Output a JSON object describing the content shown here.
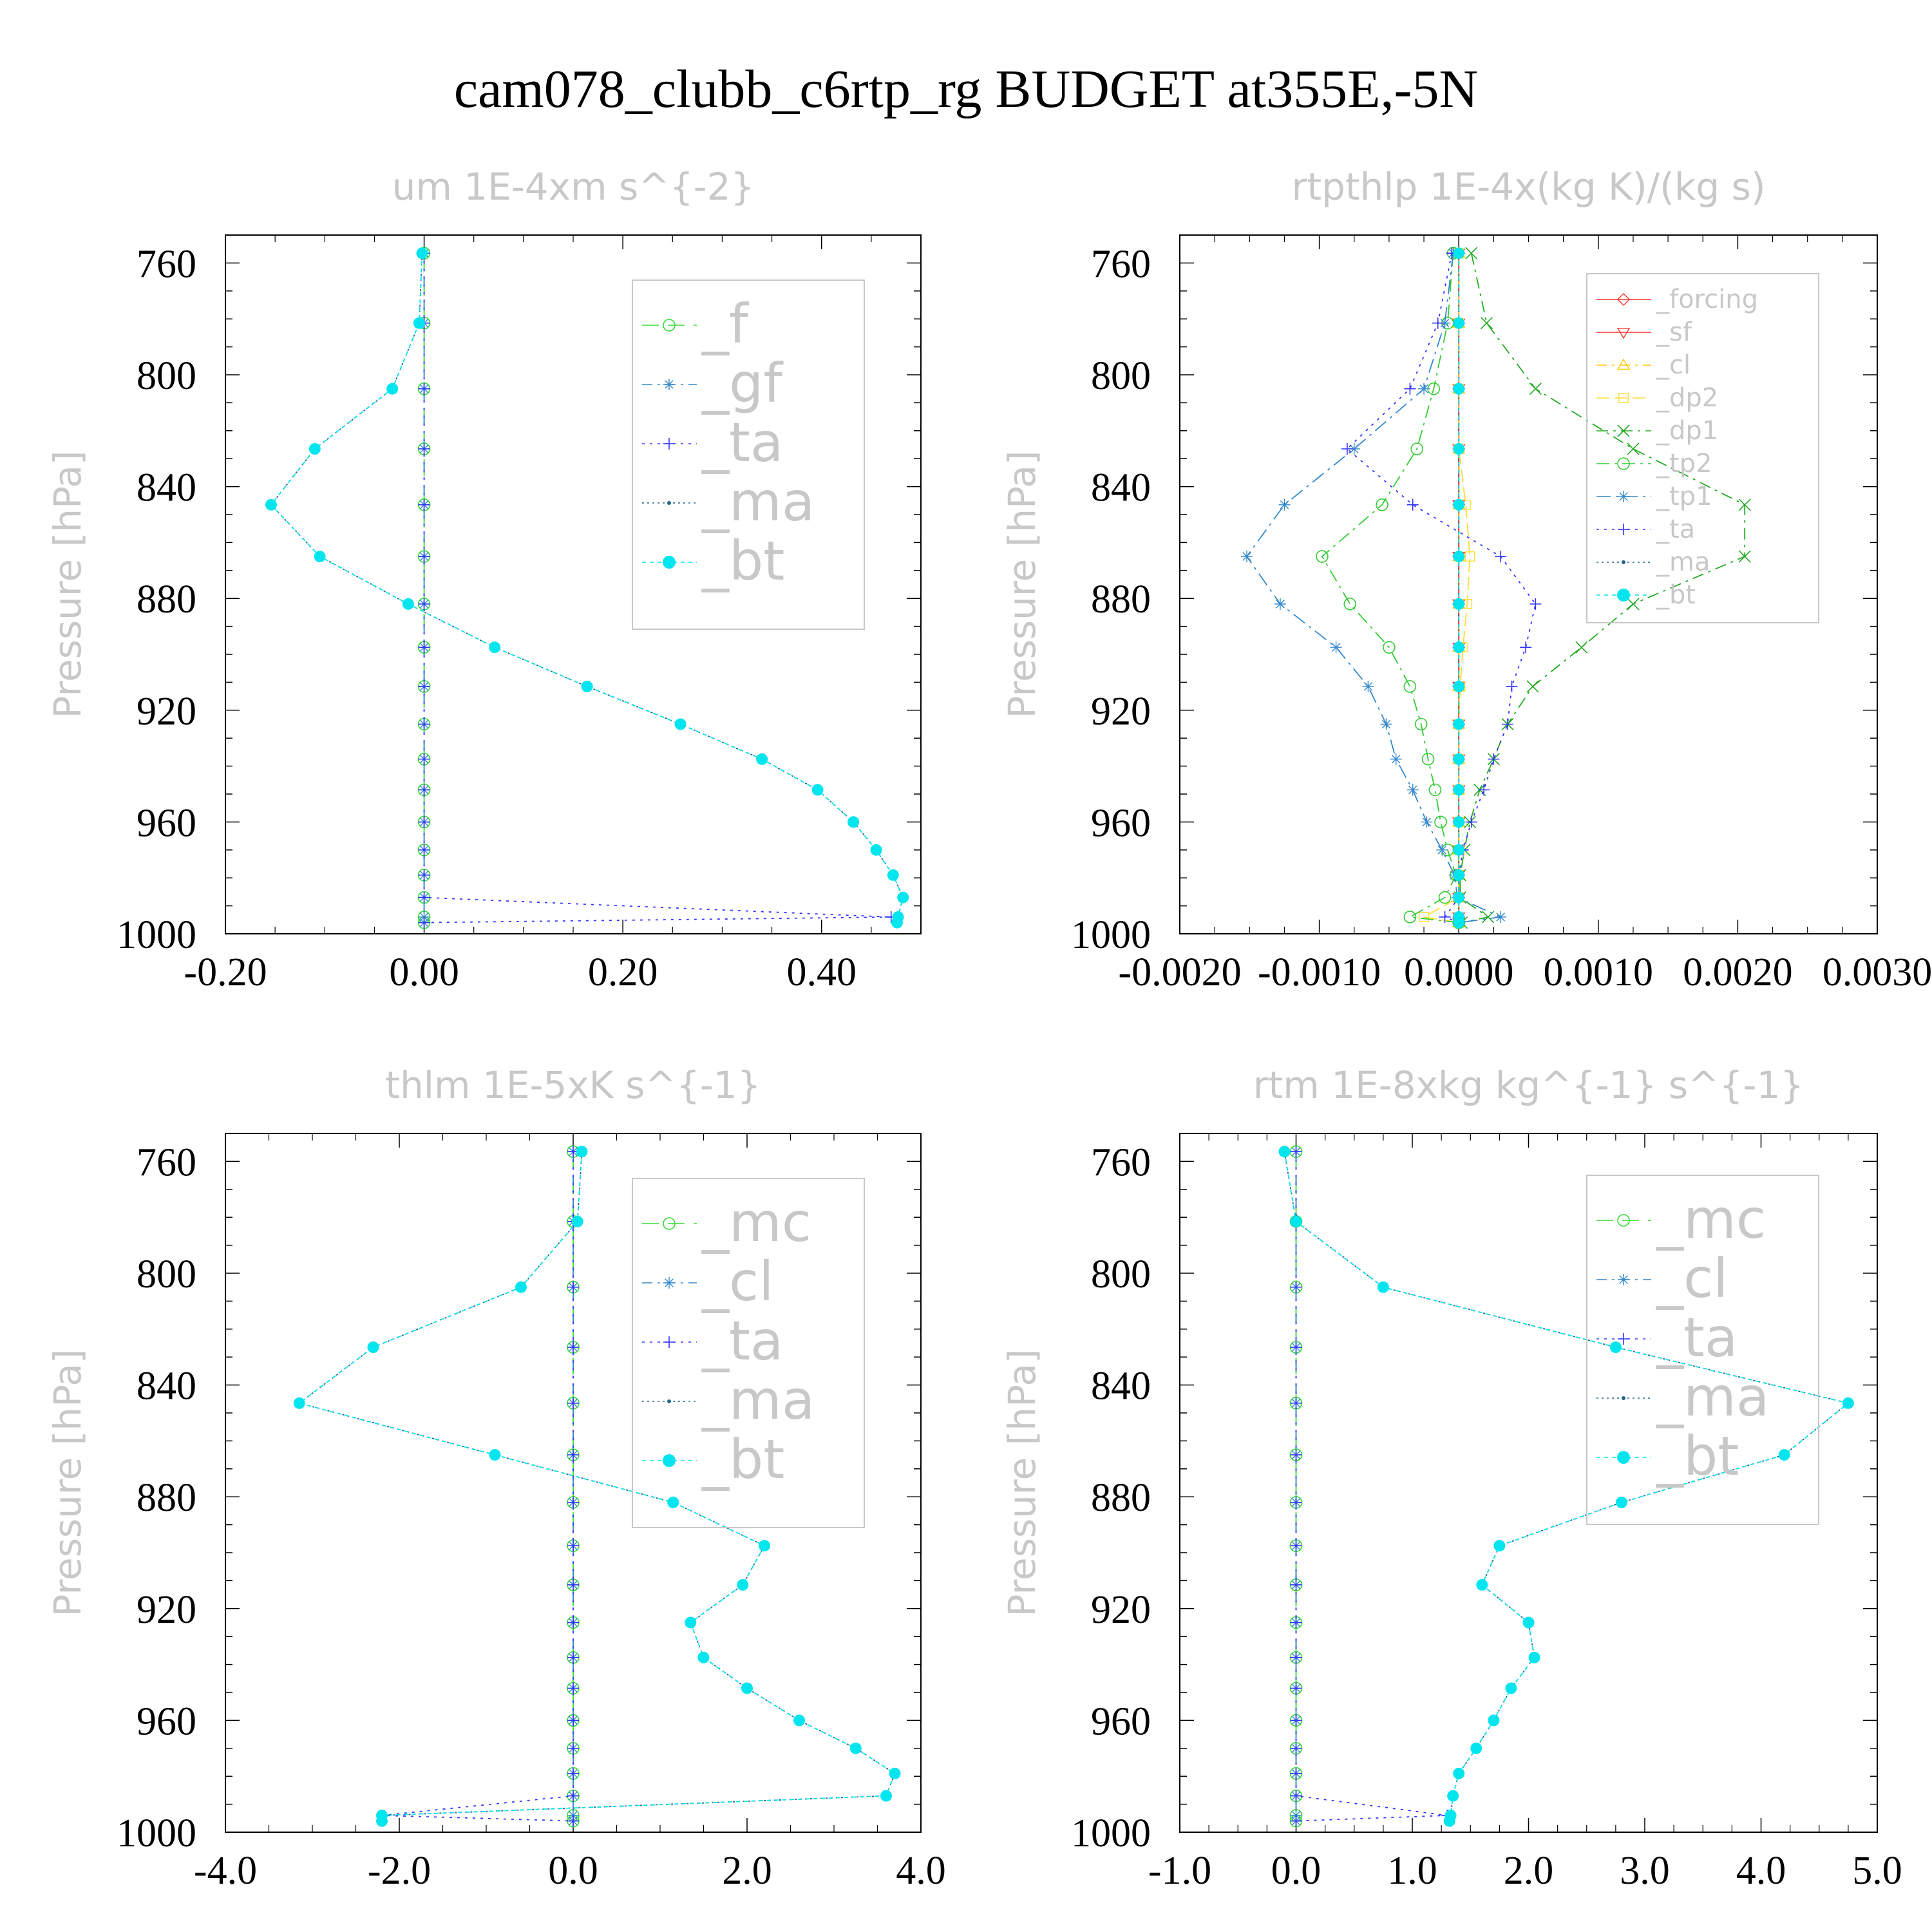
{
  "figure_title": "cam078_clubb_c6rtp_rg  BUDGET at355E,-5N",
  "ylabel": "Pressure [hPa]",
  "y_ticks": [
    "760",
    "800",
    "840",
    "880",
    "920",
    "960",
    "1000"
  ],
  "pressure_levels": [
    756.5,
    781.5,
    805,
    826.5,
    846.5,
    865,
    882,
    897.5,
    911.5,
    925,
    937.5,
    948.5,
    960,
    970,
    979,
    987,
    994,
    996
  ],
  "chart_data": [
    {
      "type": "line",
      "title": "um   1E-4xm s^{-2}",
      "xlim": [
        -0.2,
        0.5
      ],
      "ylim": [
        750,
        1000
      ],
      "x_ticks": [
        "-0.20",
        "0.00",
        "0.20",
        "0.40"
      ],
      "legend_entries": [
        "_f",
        "_gf",
        "_ta",
        "_ma",
        "_bt"
      ],
      "series": [
        {
          "name": "_f",
          "color": "#33dd33",
          "marker": "circle-open",
          "values": [
            0,
            0,
            0,
            0,
            0,
            0,
            0,
            0,
            0,
            0,
            0,
            0,
            0,
            0,
            0,
            0,
            0,
            0
          ]
        },
        {
          "name": "_gf",
          "color": "#3388cc",
          "marker": "asterisk",
          "values": [
            0,
            0,
            0,
            0,
            0,
            0,
            0,
            0,
            0,
            0,
            0,
            0,
            0,
            0,
            0,
            0,
            0,
            0
          ]
        },
        {
          "name": "_ta",
          "color": "#3333ff",
          "marker": "plus",
          "values": [
            0,
            0,
            0,
            0,
            0,
            0,
            0,
            0,
            0,
            0,
            0,
            0,
            0,
            0,
            0,
            0,
            0.47,
            0.0
          ]
        },
        {
          "name": "_ma",
          "color": "#226688",
          "marker": "dot",
          "values": [
            -0.002,
            -0.005,
            -0.032,
            -0.11,
            -0.154,
            -0.105,
            -0.016,
            0.071,
            0.164,
            0.258,
            0.34,
            0.396,
            0.432,
            0.455,
            0.472,
            0.482,
            0.477,
            0.476
          ]
        },
        {
          "name": "_bt",
          "color": "#00e5ee",
          "marker": "dot-filled",
          "values": [
            -0.002,
            -0.005,
            -0.032,
            -0.11,
            -0.154,
            -0.105,
            -0.016,
            0.071,
            0.164,
            0.258,
            0.34,
            0.396,
            0.432,
            0.455,
            0.472,
            0.482,
            0.477,
            0.476
          ]
        }
      ]
    },
    {
      "type": "line",
      "title": "rtpthlp   1E-4x(kg K)/(kg s)",
      "xlim": [
        -0.002,
        0.003
      ],
      "ylim": [
        750,
        1000
      ],
      "x_ticks": [
        "-0.0020",
        "-0.0010",
        "0.0000",
        "0.0010",
        "0.0020",
        "0.0030"
      ],
      "legend_entries": [
        "_forcing",
        "_sf",
        "_cl",
        "_dp2",
        "_dp1",
        "_tp2",
        "_tp1",
        "_ta",
        "_ma",
        "_bt"
      ],
      "series": [
        {
          "name": "_forcing",
          "color": "#ff3333",
          "marker": "diamond",
          "values": [
            0,
            0,
            0,
            0,
            0,
            0,
            0,
            0,
            0,
            0,
            0,
            0,
            0,
            0,
            0,
            0,
            0,
            0
          ]
        },
        {
          "name": "_sf",
          "color": "#ff3333",
          "marker": "triangle-down",
          "values": [
            0,
            0,
            0,
            0,
            0,
            0,
            0,
            0,
            0,
            0,
            0,
            0,
            0,
            0,
            0,
            0,
            0,
            0
          ]
        },
        {
          "name": "_cl",
          "color": "#ffcc00",
          "marker": "triangle-up",
          "values": [
            0,
            0,
            0,
            0,
            0,
            0,
            0,
            0,
            0,
            0,
            0,
            0,
            0,
            0,
            0,
            0,
            0,
            0
          ]
        },
        {
          "name": "_dp2",
          "color": "#ffdd33",
          "marker": "square",
          "values": [
            0,
            0,
            0,
            0,
            5e-05,
            8e-05,
            6e-05,
            3e-05,
            1e-05,
            0,
            0,
            0,
            0,
            0,
            0,
            0,
            -0.00025,
            0
          ]
        },
        {
          "name": "_dp1",
          "color": "#22aa22",
          "marker": "x",
          "values": [
            9e-05,
            0.0002,
            0.00055,
            0.00125,
            0.00205,
            0.00205,
            0.00125,
            0.00088,
            0.00053,
            0.00035,
            0.00025,
            0.00015,
            8e-05,
            4e-05,
            1e-05,
            1e-05,
            0.00021,
            2e-05
          ]
        },
        {
          "name": "_tp2",
          "color": "#33cc33",
          "marker": "circle-open",
          "values": [
            -4e-05,
            -8e-05,
            -0.00018,
            -0.0003,
            -0.00055,
            -0.00098,
            -0.00078,
            -0.0005,
            -0.00035,
            -0.00027,
            -0.00022,
            -0.00017,
            -0.00013,
            -8e-05,
            -2e-05,
            -0.0001,
            -0.00035,
            0.0
          ]
        },
        {
          "name": "_tp1",
          "color": "#3388cc",
          "marker": "asterisk",
          "values": [
            -4e-05,
            -0.0001,
            -0.00025,
            -0.00075,
            -0.00125,
            -0.00152,
            -0.00128,
            -0.00088,
            -0.00065,
            -0.00052,
            -0.00045,
            -0.00033,
            -0.00023,
            -0.00012,
            -3e-05,
            -1e-05,
            0.0003,
            0.0
          ]
        },
        {
          "name": "_ta",
          "color": "#3333ff",
          "marker": "plus",
          "values": [
            -5e-05,
            -0.00015,
            -0.00035,
            -0.0008,
            -0.00033,
            0.0003,
            0.00055,
            0.00048,
            0.00038,
            0.00035,
            0.00025,
            0.00018,
            9e-05,
            3e-05,
            0.0,
            0.0,
            -0.0001,
            0.0
          ]
        },
        {
          "name": "_ma",
          "color": "#226688",
          "marker": "dot",
          "values": [
            0,
            0,
            0,
            0,
            0,
            0,
            0,
            0,
            0,
            0,
            0,
            0,
            0,
            0,
            0,
            0,
            0,
            0
          ]
        },
        {
          "name": "_bt",
          "color": "#00e5ee",
          "marker": "dot-filled",
          "values": [
            0,
            0,
            0,
            0,
            0,
            0,
            0,
            0,
            0,
            0,
            0,
            0,
            0,
            0,
            0,
            0,
            0,
            0
          ]
        }
      ]
    },
    {
      "type": "line",
      "title": "thlm   1E-5xK s^{-1}",
      "xlim": [
        -4.0,
        4.0
      ],
      "ylim": [
        750,
        1000
      ],
      "x_ticks": [
        "-4.0",
        "-2.0",
        "0.0",
        "2.0",
        "4.0"
      ],
      "legend_entries": [
        "_mc",
        "_cl",
        "_ta",
        "_ma",
        "_bt"
      ],
      "series": [
        {
          "name": "_mc",
          "color": "#33dd33",
          "marker": "circle-open",
          "values": [
            0,
            0,
            0,
            0,
            0,
            0,
            0,
            0,
            0,
            0,
            0,
            0,
            0,
            0,
            0,
            0,
            0,
            0
          ]
        },
        {
          "name": "_cl",
          "color": "#3388cc",
          "marker": "asterisk",
          "values": [
            0,
            0,
            0,
            0,
            0,
            0,
            0,
            0,
            0,
            0,
            0,
            0,
            0,
            0,
            0,
            0,
            0,
            0
          ]
        },
        {
          "name": "_ta",
          "color": "#3333ff",
          "marker": "plus",
          "values": [
            0,
            0,
            0,
            0,
            0,
            0,
            0,
            0,
            0,
            0,
            0,
            0,
            0,
            0,
            0,
            0,
            -2.2,
            0.0
          ]
        },
        {
          "name": "_ma",
          "color": "#226688",
          "marker": "dot",
          "values": [
            0.1,
            0.05,
            -0.6,
            -2.3,
            -3.15,
            -0.9,
            1.15,
            2.2,
            1.95,
            1.35,
            1.5,
            2.0,
            2.6,
            3.25,
            3.7,
            3.6,
            -2.2,
            -2.2
          ]
        },
        {
          "name": "_bt",
          "color": "#00e5ee",
          "marker": "dot-filled",
          "values": [
            0.1,
            0.05,
            -0.6,
            -2.3,
            -3.15,
            -0.9,
            1.15,
            2.2,
            1.95,
            1.35,
            1.5,
            2.0,
            2.6,
            3.25,
            3.7,
            3.6,
            -2.2,
            -2.2
          ]
        }
      ]
    },
    {
      "type": "line",
      "title": "rtm   1E-8xkg kg^{-1} s^{-1}",
      "xlim": [
        -1.0,
        5.0
      ],
      "ylim": [
        750,
        1000
      ],
      "x_ticks": [
        "-1.0",
        "0.0",
        "1.0",
        "2.0",
        "3.0",
        "4.0",
        "5.0"
      ],
      "legend_entries": [
        "_mc",
        "_cl",
        "_ta",
        "_ma",
        "_bt"
      ],
      "series": [
        {
          "name": "_mc",
          "color": "#33dd33",
          "marker": "circle-open",
          "values": [
            0,
            0,
            0,
            0,
            0,
            0,
            0,
            0,
            0,
            0,
            0,
            0,
            0,
            0,
            0,
            0,
            0,
            0
          ]
        },
        {
          "name": "_cl",
          "color": "#3388cc",
          "marker": "asterisk",
          "values": [
            0,
            0,
            0,
            0,
            0,
            0,
            0,
            0,
            0,
            0,
            0,
            0,
            0,
            0,
            0,
            0,
            0,
            0
          ]
        },
        {
          "name": "_ta",
          "color": "#3333ff",
          "marker": "plus",
          "values": [
            0,
            0,
            0,
            0,
            0,
            0,
            0,
            0,
            0,
            0,
            0,
            0,
            0,
            0,
            0,
            0,
            1.3,
            0.0
          ]
        },
        {
          "name": "_ma",
          "color": "#226688",
          "marker": "dot",
          "values": [
            -0.1,
            0.0,
            0.75,
            2.75,
            4.75,
            4.2,
            2.8,
            1.75,
            1.6,
            2.0,
            2.05,
            1.85,
            1.7,
            1.55,
            1.4,
            1.35,
            1.33,
            1.32
          ]
        },
        {
          "name": "_bt",
          "color": "#00e5ee",
          "marker": "dot-filled",
          "values": [
            -0.1,
            0.0,
            0.75,
            2.75,
            4.75,
            4.2,
            2.8,
            1.75,
            1.6,
            2.0,
            2.05,
            1.85,
            1.7,
            1.55,
            1.4,
            1.35,
            1.33,
            1.32
          ]
        }
      ]
    }
  ]
}
